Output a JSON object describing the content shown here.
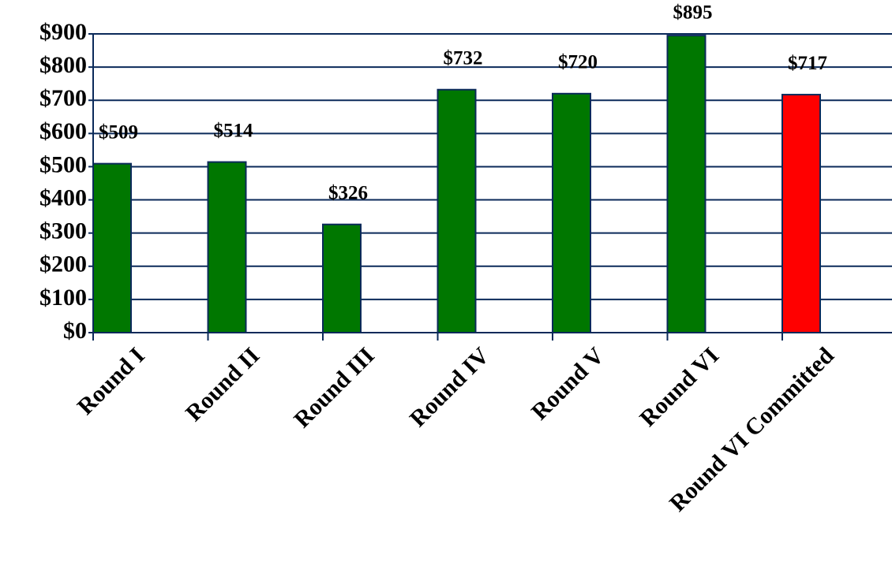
{
  "chart_data": {
    "type": "bar",
    "categories": [
      "Round I",
      "Round II",
      "Round III",
      "Round IV",
      "Round V",
      "Round VI",
      "Round VI Committed"
    ],
    "values": [
      509,
      514,
      326,
      732,
      720,
      895,
      717
    ],
    "value_labels": [
      "$509",
      "$514",
      "$326",
      "$732",
      "$720",
      "$895",
      "$717"
    ],
    "colors": [
      "#007700",
      "#007700",
      "#007700",
      "#007700",
      "#007700",
      "#007700",
      "#ff0000"
    ],
    "ylim": [
      0,
      900
    ],
    "yticks": [
      {
        "value": 0,
        "label": "$0"
      },
      {
        "value": 100,
        "label": "$100"
      },
      {
        "value": 200,
        "label": "$200"
      },
      {
        "value": 300,
        "label": "$300"
      },
      {
        "value": 400,
        "label": "$400"
      },
      {
        "value": 500,
        "label": "$500"
      },
      {
        "value": 600,
        "label": "$600"
      },
      {
        "value": 700,
        "label": "$700"
      },
      {
        "value": 800,
        "label": "$800"
      },
      {
        "value": 900,
        "label": "$900"
      }
    ],
    "grid": true
  }
}
